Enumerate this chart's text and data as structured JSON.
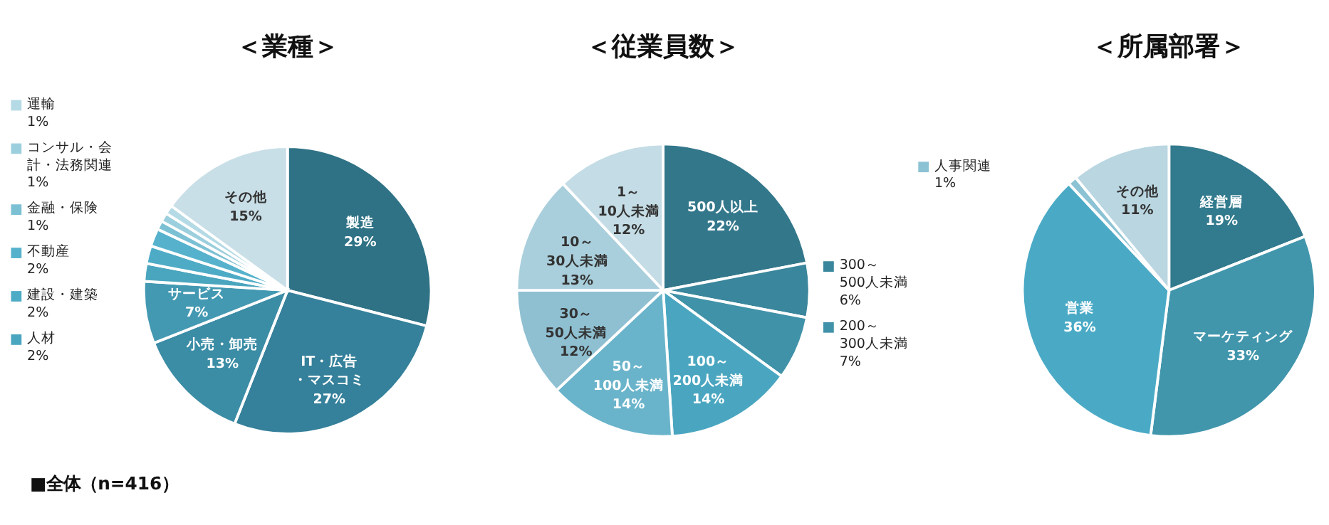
{
  "chart_data": [
    {
      "type": "pie",
      "title": "＜業種＞",
      "categories": [
        "製造",
        "IT・広告・マスコミ",
        "小売・卸売",
        "サービス",
        "人材",
        "建設・建築",
        "不動産",
        "金融・保険",
        "コンサル・会計・法務関連",
        "運輸",
        "その他"
      ],
      "values": [
        29,
        27,
        13,
        7,
        2,
        2,
        2,
        1,
        1,
        1,
        15
      ],
      "value_labels": [
        "29%",
        "27%",
        "13%",
        "7%",
        "2%",
        "2%",
        "2%",
        "1%",
        "1%",
        "1%",
        "15%"
      ],
      "colors": [
        "#2f7285",
        "#35809a",
        "#3b8ca5",
        "#4499b2",
        "#4aa5bf",
        "#4eabc6",
        "#56b2cc",
        "#7cc0d4",
        "#9ccfdd",
        "#b4dae5",
        "#c9dfe7"
      ],
      "legend": "left",
      "annotations": [
        "■全体（n=416）"
      ]
    },
    {
      "type": "pie",
      "title": "＜従業員数＞",
      "categories": [
        "500人以上",
        "300～500人未満",
        "200～300人未満",
        "100～200人未満",
        "50～100人未満",
        "30～50人未満",
        "10～30人未満",
        "1～10人未満"
      ],
      "values": [
        22,
        6,
        7,
        14,
        14,
        12,
        13,
        12
      ],
      "value_labels": [
        "22%",
        "6%",
        "7%",
        "14%",
        "14%",
        "12%",
        "13%",
        "12%"
      ],
      "colors": [
        "#33778b",
        "#3a869c",
        "#4092a8",
        "#4aa6c0",
        "#6ab4cb",
        "#8fc0d2",
        "#aacfdc",
        "#c4dce5"
      ],
      "legend": "right"
    },
    {
      "type": "pie",
      "title": "＜所属部署＞",
      "categories": [
        "経営層",
        "マーケティング",
        "営業",
        "人事関連",
        "その他"
      ],
      "values": [
        19,
        33,
        36,
        1,
        11
      ],
      "value_labels": [
        "19%",
        "33%",
        "36%",
        "1%",
        "11%"
      ],
      "colors": [
        "#327a8d",
        "#4196ac",
        "#4aaac6",
        "#8cc3d4",
        "#b9d6e1"
      ],
      "legend": "top left"
    }
  ]
}
